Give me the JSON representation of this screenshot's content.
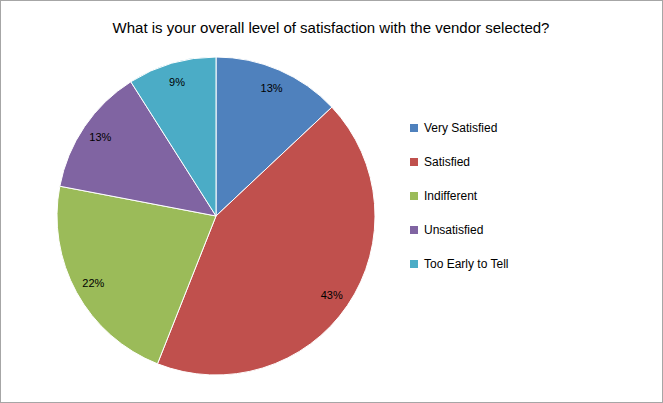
{
  "chart_data": {
    "type": "pie",
    "title": "What is your overall level of satisfaction with the vendor selected?",
    "categories": [
      "Very Satisfied",
      "Satisfied",
      "Indifferent",
      "Unsatisfied",
      "Too Early to Tell"
    ],
    "values": [
      13,
      43,
      22,
      13,
      9
    ],
    "value_labels": [
      "13%",
      "43%",
      "22%",
      "13%",
      "9%"
    ],
    "colors": [
      "#4f81bd",
      "#c0504d",
      "#9bbb59",
      "#8064a2",
      "#4bacc6"
    ],
    "data_labels": true,
    "legend": "right"
  }
}
